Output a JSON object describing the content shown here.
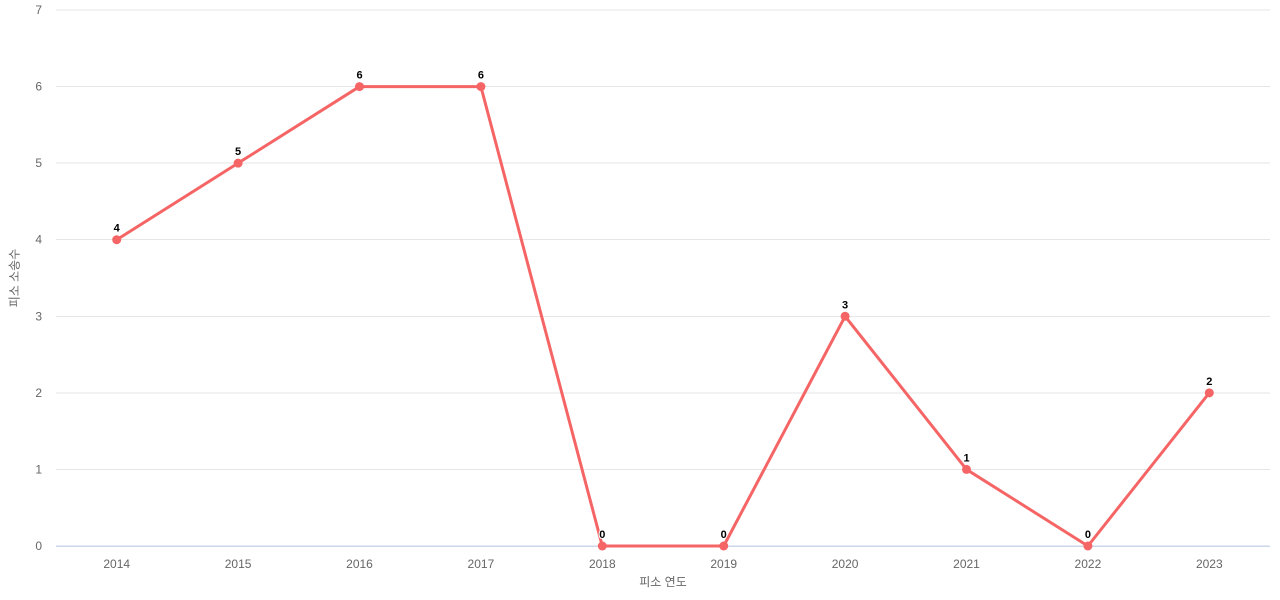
{
  "chart_data": {
    "type": "line",
    "title": "",
    "categories": [
      "2014",
      "2015",
      "2016",
      "2017",
      "2018",
      "2019",
      "2020",
      "2021",
      "2022",
      "2023"
    ],
    "values": [
      4,
      5,
      6,
      6,
      0,
      0,
      3,
      1,
      0,
      2
    ],
    "data_labels": [
      "4",
      "5",
      "6",
      "6",
      "0",
      "0",
      "3",
      "1",
      "0",
      "2"
    ],
    "xlabel": "피소 연도",
    "ylabel": "피소 소송수",
    "ylim": [
      0,
      7
    ],
    "y_ticks": [
      0,
      1,
      2,
      3,
      4,
      5,
      6,
      7
    ],
    "grid": "horizontal-on",
    "legend": "none",
    "colors": {
      "line": "#f56565",
      "marker": "#f56565",
      "grid": "#e6e6e6",
      "axis_line": "#ccd6eb",
      "tick_label": "#666666",
      "axis_title": "#666666",
      "data_label": "#000000",
      "background": "#ffffff"
    }
  }
}
